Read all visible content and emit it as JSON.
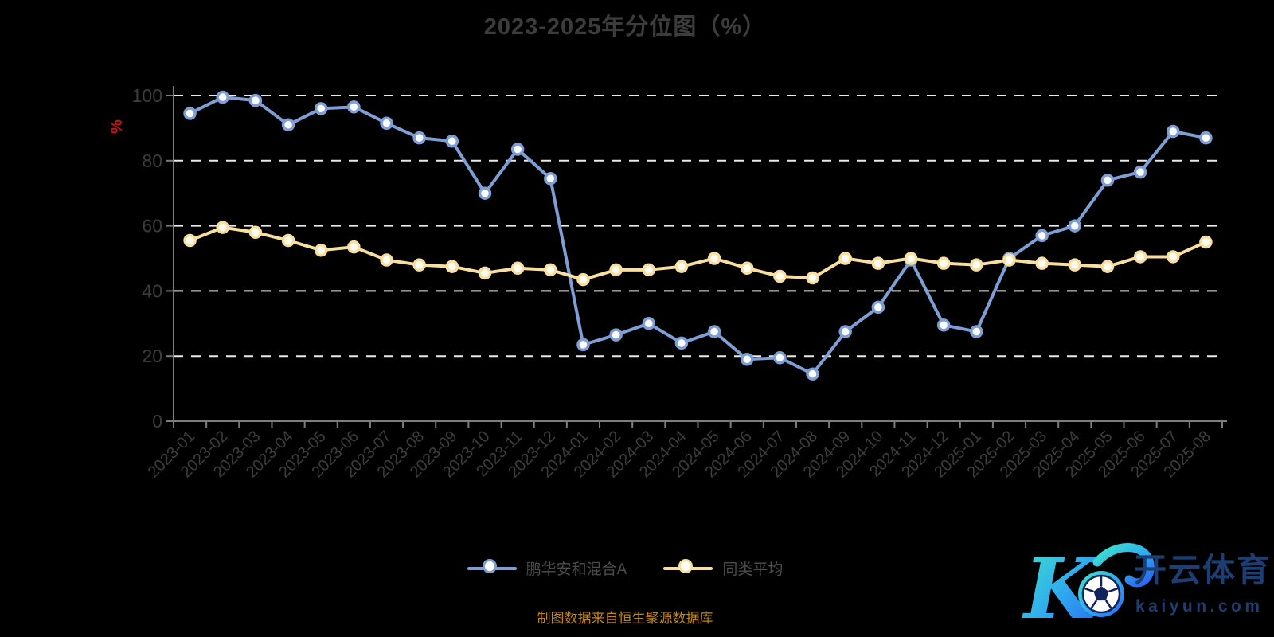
{
  "title": "2023-2025年分位图（%）",
  "y_axis": {
    "name": "%"
  },
  "legend": [
    {
      "label": "鹏华安和混合A",
      "color": "#7d9fd5"
    },
    {
      "label": "同类平均",
      "color": "#f8dfa0"
    }
  ],
  "footer": {
    "text": "制图数据来自恒生聚源数据库",
    "color": "#c2860f"
  },
  "watermark": {
    "logo_letter": "K",
    "brand": "开云体育",
    "domain": "kaiyun.com",
    "brand_color": "#1d3e73",
    "logo_gradient": [
      "#3ee6c9",
      "#2e7df5"
    ]
  },
  "chart_data": {
    "type": "line",
    "title": "2023-2025年分位图（%）",
    "xlabel": "",
    "ylabel": "%",
    "ylim": [
      0,
      100
    ],
    "y_ticks": [
      0,
      20,
      40,
      60,
      80,
      100
    ],
    "grid": "horizontal-dashed",
    "legend_position": "bottom",
    "background": "#000000",
    "categories": [
      "2023-01",
      "2023-02",
      "2023-03",
      "2023-04",
      "2023-05",
      "2023-06",
      "2023-07",
      "2023-08",
      "2023-09",
      "2023-10",
      "2023-11",
      "2023-12",
      "2024-01",
      "2024-02",
      "2024-03",
      "2024-04",
      "2024-05",
      "2024-06",
      "2024-07",
      "2024-08",
      "2024-09",
      "2024-10",
      "2024-11",
      "2024-12",
      "2025-01",
      "2025-02",
      "2025-03",
      "2025-04",
      "2025-05",
      "2025-06",
      "2025-07",
      "2025-08"
    ],
    "series": [
      {
        "id": "fund",
        "name": "鹏华安和混合A",
        "color": "#7d9fd5",
        "marker_fill": "#ffffff",
        "values": [
          94.5,
          99.5,
          98.5,
          91,
          96,
          96.5,
          91.5,
          87,
          86,
          70,
          83.5,
          74.5,
          23.5,
          26.5,
          30,
          24,
          27.5,
          19,
          19.5,
          14.5,
          27.5,
          35,
          49.5,
          29.5,
          27.5,
          50,
          57,
          60,
          74,
          76.5,
          89,
          87
        ]
      },
      {
        "id": "peer-average",
        "name": "同类平均",
        "color": "#f8dfa0",
        "marker_fill": "#fffdf4",
        "values": [
          55.5,
          59.5,
          58,
          55.5,
          52.5,
          53.5,
          49.5,
          48,
          47.5,
          45.5,
          47,
          46.5,
          43.5,
          46.5,
          46.5,
          47.5,
          50,
          47,
          44.5,
          44,
          50,
          48.5,
          50,
          48.5,
          48,
          49.5,
          48.5,
          48,
          47.5,
          50.5,
          50.5,
          55
        ]
      }
    ]
  }
}
